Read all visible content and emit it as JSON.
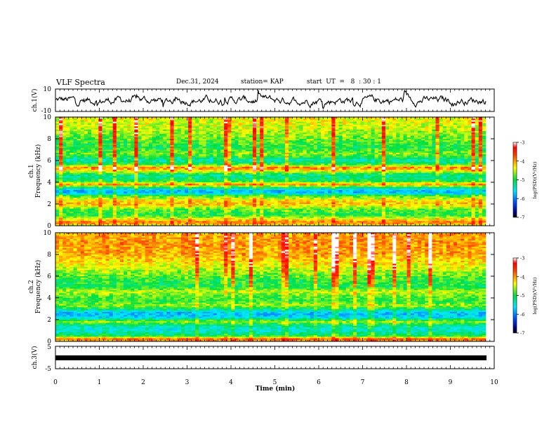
{
  "header": {
    "title": "VLF Spectra",
    "date": "Dec.31, 2024",
    "station": "station= KAP",
    "start": "start  UT  =   8  : 30 : 1"
  },
  "chart_data": [
    {
      "type": "line",
      "name": "ch1-waveform",
      "ylabel": "ch.1(V)",
      "ylim": [
        -10,
        10
      ],
      "yticks": [
        "10",
        "-10"
      ],
      "xlim": [
        0,
        10
      ],
      "x_unit": "min"
    },
    {
      "type": "heatmap",
      "name": "ch1-spectrogram",
      "ylabel": "ch.1 Frequency (kHz)",
      "ylim": [
        0,
        10
      ],
      "yticks": [
        "0",
        "2",
        "4",
        "6",
        "8",
        "10"
      ],
      "xlim": [
        0,
        9.8
      ],
      "colorbar": {
        "label": "log(PSD)(V²/Hz)",
        "range": [
          -7,
          -3
        ],
        "ticks": [
          "-3",
          "-4",
          "-5",
          "-6",
          "-7"
        ]
      }
    },
    {
      "type": "heatmap",
      "name": "ch2-spectrogram",
      "ylabel": "ch.2 Frequency (kHz)",
      "ylim": [
        0,
        10
      ],
      "yticks": [
        "0",
        "2",
        "4",
        "6",
        "8",
        "10"
      ],
      "xlim": [
        0,
        9.8
      ],
      "colorbar": {
        "label": "log(PSD)(V²/Hz)",
        "range": [
          -7,
          -3
        ],
        "ticks": [
          "-3",
          "-4",
          "-5",
          "-6",
          "-7"
        ]
      }
    },
    {
      "type": "line",
      "name": "ch3-waveform",
      "ylabel": "ch.3(V)",
      "ylim": [
        -5,
        5
      ],
      "yticks": [
        "5",
        "-5"
      ],
      "xlim": [
        0,
        10
      ]
    }
  ],
  "xaxis": {
    "label": "Time  (min)",
    "range": [
      0,
      10
    ],
    "ticks": [
      "0",
      "1",
      "2",
      "3",
      "4",
      "5",
      "6",
      "7",
      "8",
      "9",
      "10"
    ]
  },
  "colors": {
    "line": "#000000",
    "bg": "#ffffff"
  }
}
